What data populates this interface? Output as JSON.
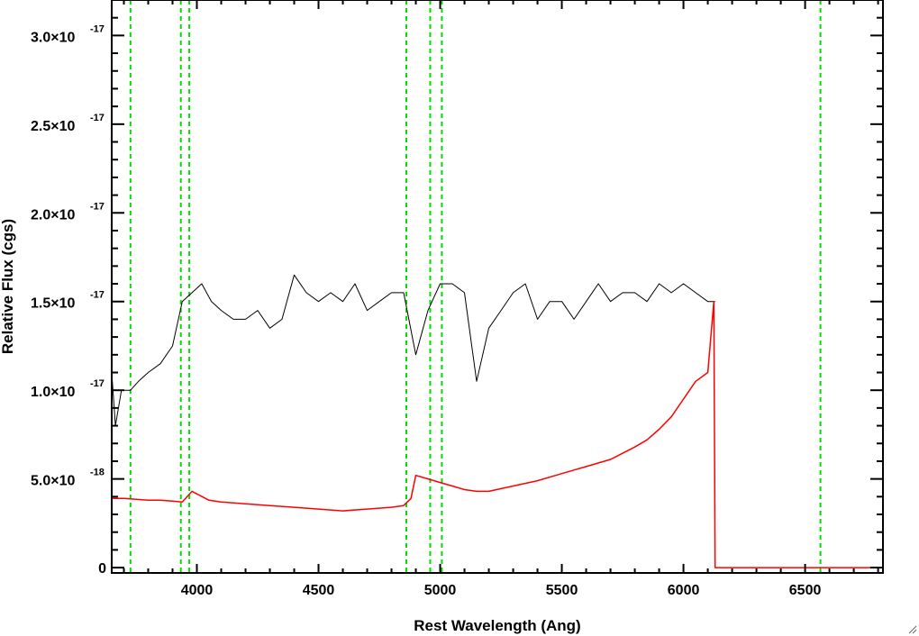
{
  "chart_data": {
    "type": "line",
    "title": "",
    "xlabel": "Rest Wavelength (Ang)",
    "ylabel": "Relative Flux (cgs)",
    "xlim": [
      3650,
      6820
    ],
    "ylim": [
      -3e-19,
      3.2e-17
    ],
    "x_ticks": [
      4000,
      4500,
      5000,
      5500,
      6000,
      6500
    ],
    "x_tick_labels": [
      "4000",
      "4500",
      "5000",
      "5500",
      "6000",
      "6500"
    ],
    "y_ticks": [
      {
        "value": 0,
        "mantissa": "0",
        "exponent": ""
      },
      {
        "value": 5e-18,
        "mantissa": "5.0×10",
        "exponent": "-18"
      },
      {
        "value": 1e-17,
        "mantissa": "1.0×10",
        "exponent": "-17"
      },
      {
        "value": 1.5e-17,
        "mantissa": "1.5×10",
        "exponent": "-17"
      },
      {
        "value": 2e-17,
        "mantissa": "2.0×10",
        "exponent": "-17"
      },
      {
        "value": 2.5e-17,
        "mantissa": "2.5×10",
        "exponent": "-17"
      },
      {
        "value": 3e-17,
        "mantissa": "3.0×10",
        "exponent": "-17"
      }
    ],
    "reference_lines_x": [
      3727,
      3934,
      3969,
      4861,
      4959,
      5007,
      6563
    ],
    "series": [
      {
        "color": "#000000",
        "x": [
          3650,
          3665,
          3690,
          3727,
          3760,
          3800,
          3850,
          3900,
          3940,
          3980,
          4020,
          4060,
          4100,
          4150,
          4200,
          4250,
          4300,
          4350,
          4400,
          4450,
          4500,
          4550,
          4600,
          4650,
          4700,
          4750,
          4800,
          4850,
          4900,
          4950,
          5000,
          5050,
          5100,
          5150,
          5200,
          5250,
          5300,
          5350,
          5400,
          5450,
          5500,
          5550,
          5600,
          5650,
          5700,
          5750,
          5800,
          5850,
          5900,
          5950,
          6000,
          6050,
          6100,
          6130
        ],
        "values": [
          1.1e-17,
          8e-18,
          1e-17,
          1e-17,
          1.05e-17,
          1.1e-17,
          1.15e-17,
          1.25e-17,
          1.5e-17,
          1.55e-17,
          1.6e-17,
          1.5e-17,
          1.45e-17,
          1.4e-17,
          1.4e-17,
          1.45e-17,
          1.35e-17,
          1.4e-17,
          1.65e-17,
          1.55e-17,
          1.5e-17,
          1.55e-17,
          1.5e-17,
          1.6e-17,
          1.45e-17,
          1.5e-17,
          1.55e-17,
          1.55e-17,
          1.2e-17,
          1.45e-17,
          1.6e-17,
          1.6e-17,
          1.55e-17,
          1.05e-17,
          1.35e-17,
          1.45e-17,
          1.55e-17,
          1.6e-17,
          1.4e-17,
          1.5e-17,
          1.5e-17,
          1.4e-17,
          1.5e-17,
          1.6e-17,
          1.5e-17,
          1.55e-17,
          1.55e-17,
          1.5e-17,
          1.6e-17,
          1.55e-17,
          1.6e-17,
          1.55e-17,
          1.5e-17,
          1.5e-17
        ]
      },
      {
        "color": "#ff0000",
        "x": [
          3650,
          3700,
          3750,
          3800,
          3850,
          3900,
          3940,
          3980,
          4050,
          4100,
          4200,
          4300,
          4400,
          4500,
          4600,
          4700,
          4800,
          4850,
          4880,
          4900,
          4950,
          5000,
          5050,
          5100,
          5150,
          5200,
          5300,
          5400,
          5500,
          5600,
          5700,
          5800,
          5850,
          5900,
          5950,
          6000,
          6050,
          6100,
          6125,
          6130,
          6140,
          6200,
          6400,
          6600,
          6820
        ],
        "values": [
          3.9e-18,
          3.9e-18,
          3.85e-18,
          3.8e-18,
          3.8e-18,
          3.75e-18,
          3.7e-18,
          4.3e-18,
          3.8e-18,
          3.7e-18,
          3.6e-18,
          3.5e-18,
          3.4e-18,
          3.3e-18,
          3.2e-18,
          3.3e-18,
          3.4e-18,
          3.5e-18,
          3.9e-18,
          5.2e-18,
          5e-18,
          4.8e-18,
          4.6e-18,
          4.4e-18,
          4.3e-18,
          4.3e-18,
          4.6e-18,
          4.9e-18,
          5.3e-18,
          5.7e-18,
          6.1e-18,
          6.8e-18,
          7.2e-18,
          7.8e-18,
          8.5e-18,
          9.5e-18,
          1.05e-17,
          1.1e-17,
          1.5e-17,
          0,
          0,
          0,
          0,
          0,
          0
        ]
      }
    ],
    "grid": false,
    "colors": {
      "frame": "#000000",
      "reference_line": "#00dd00"
    }
  }
}
